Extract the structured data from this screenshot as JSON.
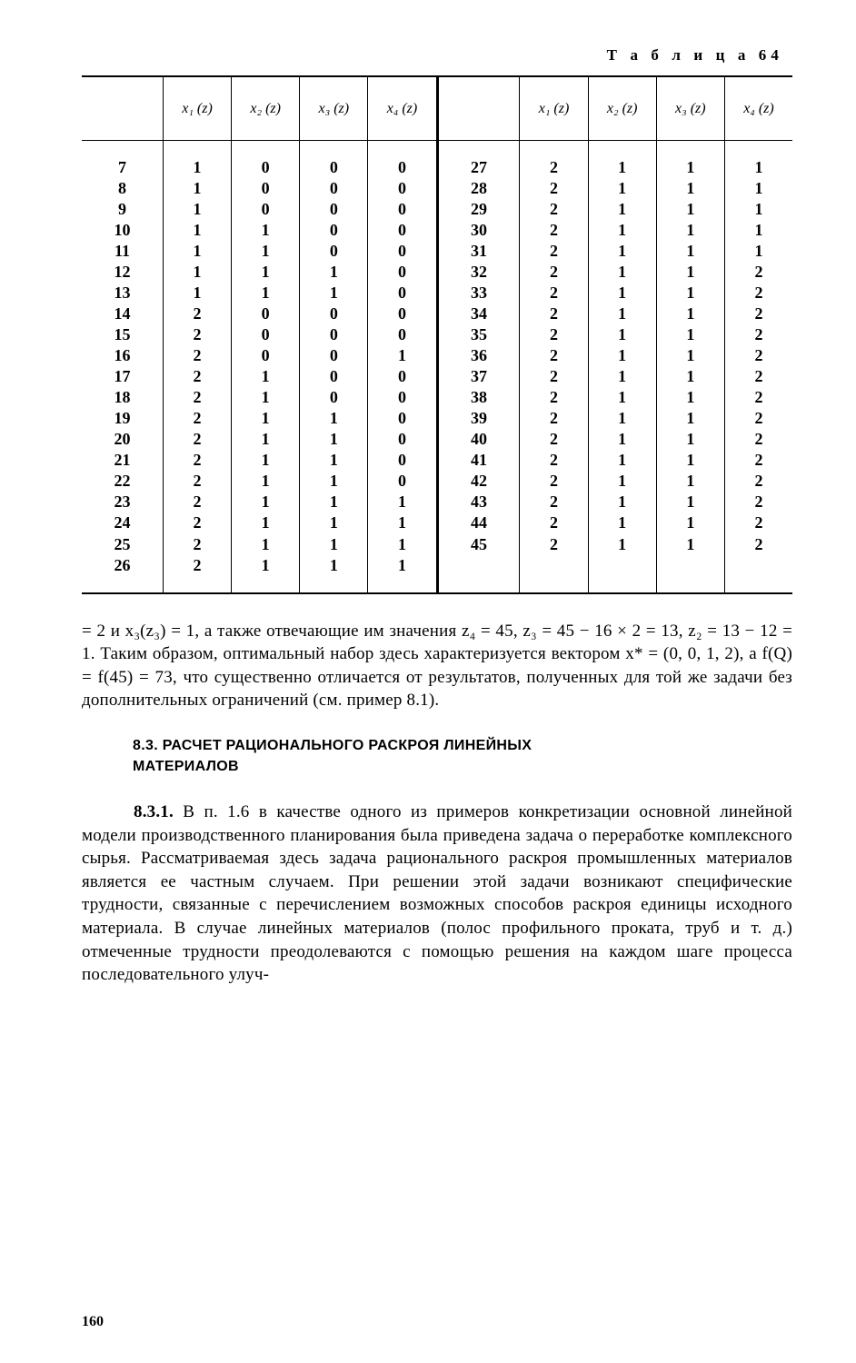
{
  "table_label": "Т а б л и ц а  64",
  "headers": {
    "idx": "",
    "x1": "x₁ (z)",
    "x2": "x₂ (z)",
    "x3": "x₃ (z)",
    "x4": "x₄ (z)"
  },
  "left_rows": [
    {
      "i": "7",
      "x1": "1",
      "x2": "0",
      "x3": "0",
      "x4": "0"
    },
    {
      "i": "8",
      "x1": "1",
      "x2": "0",
      "x3": "0",
      "x4": "0"
    },
    {
      "i": "9",
      "x1": "1",
      "x2": "0",
      "x3": "0",
      "x4": "0"
    },
    {
      "i": "10",
      "x1": "1",
      "x2": "1",
      "x3": "0",
      "x4": "0"
    },
    {
      "i": "11",
      "x1": "1",
      "x2": "1",
      "x3": "0",
      "x4": "0"
    },
    {
      "i": "12",
      "x1": "1",
      "x2": "1",
      "x3": "1",
      "x4": "0"
    },
    {
      "i": "13",
      "x1": "1",
      "x2": "1",
      "x3": "1",
      "x4": "0"
    },
    {
      "i": "14",
      "x1": "2",
      "x2": "0",
      "x3": "0",
      "x4": "0"
    },
    {
      "i": "15",
      "x1": "2",
      "x2": "0",
      "x3": "0",
      "x4": "0"
    },
    {
      "i": "16",
      "x1": "2",
      "x2": "0",
      "x3": "0",
      "x4": "1"
    },
    {
      "i": "17",
      "x1": "2",
      "x2": "1",
      "x3": "0",
      "x4": "0"
    },
    {
      "i": "18",
      "x1": "2",
      "x2": "1",
      "x3": "0",
      "x4": "0"
    },
    {
      "i": "19",
      "x1": "2",
      "x2": "1",
      "x3": "1",
      "x4": "0"
    },
    {
      "i": "20",
      "x1": "2",
      "x2": "1",
      "x3": "1",
      "x4": "0"
    },
    {
      "i": "21",
      "x1": "2",
      "x2": "1",
      "x3": "1",
      "x4": "0"
    },
    {
      "i": "22",
      "x1": "2",
      "x2": "1",
      "x3": "1",
      "x4": "0"
    },
    {
      "i": "23",
      "x1": "2",
      "x2": "1",
      "x3": "1",
      "x4": "1"
    },
    {
      "i": "24",
      "x1": "2",
      "x2": "1",
      "x3": "1",
      "x4": "1"
    },
    {
      "i": "25",
      "x1": "2",
      "x2": "1",
      "x3": "1",
      "x4": "1"
    },
    {
      "i": "26",
      "x1": "2",
      "x2": "1",
      "x3": "1",
      "x4": "1"
    }
  ],
  "right_rows": [
    {
      "i": "27",
      "x1": "2",
      "x2": "1",
      "x3": "1",
      "x4": "1"
    },
    {
      "i": "28",
      "x1": "2",
      "x2": "1",
      "x3": "1",
      "x4": "1"
    },
    {
      "i": "29",
      "x1": "2",
      "x2": "1",
      "x3": "1",
      "x4": "1"
    },
    {
      "i": "30",
      "x1": "2",
      "x2": "1",
      "x3": "1",
      "x4": "1"
    },
    {
      "i": "31",
      "x1": "2",
      "x2": "1",
      "x3": "1",
      "x4": "1"
    },
    {
      "i": "32",
      "x1": "2",
      "x2": "1",
      "x3": "1",
      "x4": "2"
    },
    {
      "i": "33",
      "x1": "2",
      "x2": "1",
      "x3": "1",
      "x4": "2"
    },
    {
      "i": "34",
      "x1": "2",
      "x2": "1",
      "x3": "1",
      "x4": "2"
    },
    {
      "i": "35",
      "x1": "2",
      "x2": "1",
      "x3": "1",
      "x4": "2"
    },
    {
      "i": "36",
      "x1": "2",
      "x2": "1",
      "x3": "1",
      "x4": "2"
    },
    {
      "i": "37",
      "x1": "2",
      "x2": "1",
      "x3": "1",
      "x4": "2"
    },
    {
      "i": "38",
      "x1": "2",
      "x2": "1",
      "x3": "1",
      "x4": "2"
    },
    {
      "i": "39",
      "x1": "2",
      "x2": "1",
      "x3": "1",
      "x4": "2"
    },
    {
      "i": "40",
      "x1": "2",
      "x2": "1",
      "x3": "1",
      "x4": "2"
    },
    {
      "i": "41",
      "x1": "2",
      "x2": "1",
      "x3": "1",
      "x4": "2"
    },
    {
      "i": "42",
      "x1": "2",
      "x2": "1",
      "x3": "1",
      "x4": "2"
    },
    {
      "i": "43",
      "x1": "2",
      "x2": "1",
      "x3": "1",
      "x4": "2"
    },
    {
      "i": "44",
      "x1": "2",
      "x2": "1",
      "x3": "1",
      "x4": "2"
    },
    {
      "i": "45",
      "x1": "2",
      "x2": "1",
      "x3": "1",
      "x4": "2"
    }
  ],
  "para1": "= 2 и x₃(z₃) = 1, а также отвечающие им значения z₄ = 45, z₃ = 45 − 16 × 2 = 13, z₂ = 13 − 12 = 1. Таким образом, оптимальный набор здесь характеризуется вектором x* = (0, 0, 1, 2), а f(Q) = f(45) = 73, что существенно отличается от результатов, полученных для той же задачи без дополнительных ограничений (см. пример 8.1).",
  "section_heading": "8.3. РАСЧЕТ РАЦИОНАЛЬНОГО РАСКРОЯ ЛИНЕЙНЫХ МАТЕРИАЛОВ",
  "para2_lead": "8.3.1.",
  "para2": " В п. 1.6 в качестве одного из примеров конкретизации основной линейной модели производственного планирования была приведена задача о переработке комплексного сырья. Рассматриваемая здесь задача рационального раскроя промышленных материалов является ее частным случаем. При решении этой задачи возникают специфические трудности, связанные с перечислением возможных способов раскроя единицы исходного материала. В случае линейных материалов (полос профильного проката, труб и т. д.) отмеченные трудности преодолеваются с помощью решения на каждом шаге процесса последовательного улуч-",
  "page_number": "160"
}
